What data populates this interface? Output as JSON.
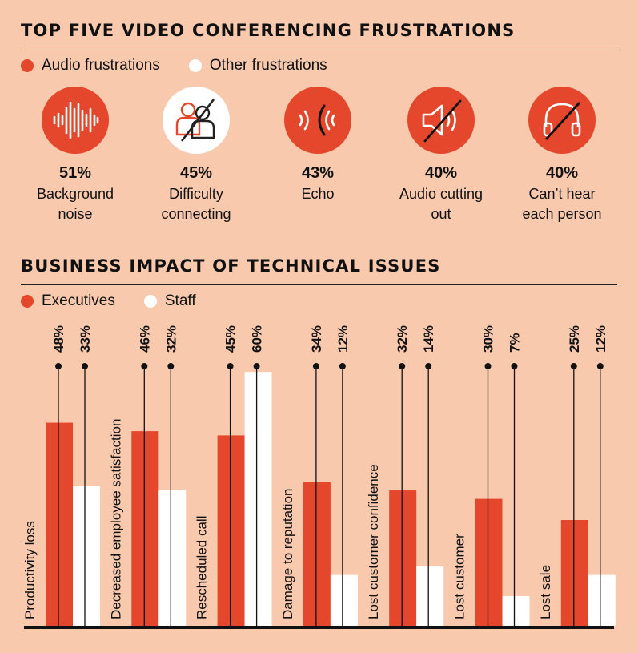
{
  "section1": {
    "title": "TOP FIVE VIDEO CONFERENCING FRUSTRATIONS",
    "legend": [
      {
        "label": "Audio frustrations",
        "color": "#e4472c"
      },
      {
        "label": "Other frustrations",
        "color": "#ffffff"
      }
    ],
    "items": [
      {
        "icon": "sound-wave-icon",
        "percent": "51%",
        "line1": "Background",
        "line2": "noise",
        "type": "audio"
      },
      {
        "icon": "people-crossed-icon",
        "percent": "45%",
        "line1": "Difficulty",
        "line2": "connecting",
        "type": "other"
      },
      {
        "icon": "echo-icon",
        "percent": "43%",
        "line1": "Echo",
        "line2": "",
        "type": "audio"
      },
      {
        "icon": "speaker-muted-icon",
        "percent": "40%",
        "line1": "Audio cutting",
        "line2": "out",
        "type": "audio"
      },
      {
        "icon": "headphones-crossed-icon",
        "percent": "40%",
        "line1": "Can’t hear",
        "line2": "each person",
        "type": "audio"
      }
    ]
  },
  "section2": {
    "title": "BUSINESS IMPACT OF TECHNICAL ISSUES",
    "legend": [
      {
        "label": "Executives",
        "color": "#e4472c"
      },
      {
        "label": "Staff",
        "color": "#ffffff"
      }
    ]
  },
  "chart_data": {
    "type": "bar",
    "categories": [
      "Productivity loss",
      "Decreased employee satisfaction",
      "Rescheduled call",
      "Damage to reputation",
      "Lost customer confidence",
      "Lost customer",
      "Lost sale"
    ],
    "series": [
      {
        "name": "Executives",
        "values": [
          48,
          46,
          45,
          34,
          32,
          30,
          25
        ],
        "color": "#e4472c"
      },
      {
        "name": "Staff",
        "values": [
          33,
          32,
          60,
          12,
          14,
          7,
          12
        ],
        "color": "#ffffff"
      }
    ],
    "unit": "%",
    "ylim": [
      0,
      60
    ],
    "title": "BUSINESS IMPACT OF TECHNICAL ISSUES",
    "legend_placement": "top-left",
    "grid": false
  }
}
